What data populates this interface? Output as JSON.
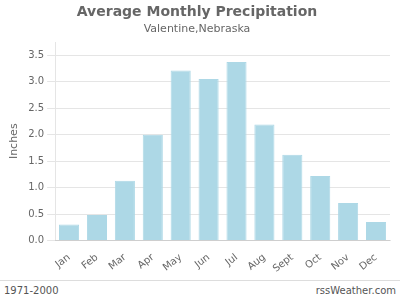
{
  "chart_data": {
    "type": "bar",
    "title": "Average Monthly Precipitation",
    "subtitle": "Valentine,Nebraska",
    "ylabel": "Inches",
    "categories": [
      "Jan",
      "Feb",
      "Mar",
      "Apr",
      "May",
      "Jun",
      "Jul",
      "Aug",
      "Sept",
      "Oct",
      "Nov",
      "Dec"
    ],
    "values": [
      0.3,
      0.48,
      1.13,
      2.0,
      3.21,
      3.05,
      3.37,
      2.19,
      1.62,
      1.22,
      0.71,
      0.35
    ],
    "color": "#ADD8E6",
    "ylim": [
      0,
      3.75
    ],
    "yticks": [
      {
        "value": 0,
        "label": "0.0"
      },
      0.5,
      {
        "value": 1,
        "label": "1.0"
      },
      1.5,
      {
        "value": 2,
        "label": "2.0"
      },
      2.5,
      {
        "value": 3,
        "label": "3.0"
      },
      3.5
    ],
    "grid": true,
    "annotations": [
      "1971-2000",
      "rssWeather.com"
    ]
  }
}
